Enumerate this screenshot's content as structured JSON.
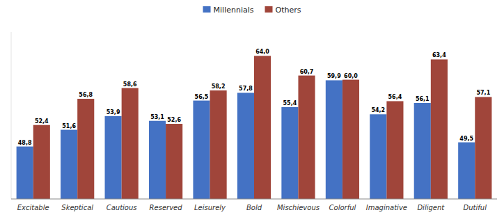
{
  "chart_data": {
    "type": "bar",
    "categories": [
      "Excitable",
      "Skeptical",
      "Cautious",
      "Reserved",
      "Leisurely",
      "Bold",
      "Mischievous",
      "Colorful",
      "Imaginative",
      "Diligent",
      "Dutiful"
    ],
    "series": [
      {
        "name": "Millennials",
        "color": "#4472C4",
        "values": [
          48.8,
          51.6,
          53.9,
          53.1,
          56.5,
          57.8,
          55.4,
          59.9,
          54.2,
          56.1,
          49.5
        ],
        "value_labels": [
          "48,8",
          "51,6",
          "53,9",
          "53,1",
          "56,5",
          "57,8",
          "55,4",
          "59,9",
          "54,2",
          "56,1",
          "49,5"
        ]
      },
      {
        "name": "Others",
        "color": "#A0453A",
        "values": [
          52.4,
          56.8,
          58.6,
          52.6,
          58.2,
          64.0,
          60.7,
          60.0,
          56.4,
          63.4,
          57.1
        ],
        "value_labels": [
          "52,4",
          "56,8",
          "58,6",
          "52,6",
          "58,2",
          "64,0",
          "60,7",
          "60,0",
          "56,4",
          "63,4",
          "57,1"
        ]
      }
    ],
    "ylim": [
      40,
      68
    ],
    "tick_labels": "x",
    "data_labels": true,
    "legend": "top",
    "grid": false
  }
}
